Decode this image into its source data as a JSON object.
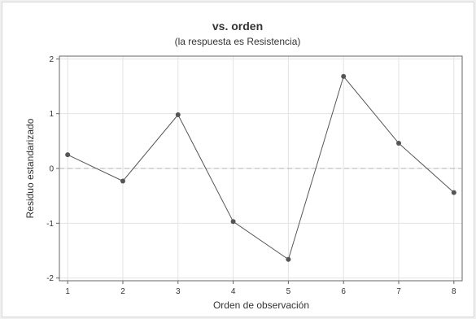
{
  "chart_data": {
    "type": "line",
    "title": "vs. orden",
    "subtitle": "(la respuesta es Resistencia)",
    "xlabel": "Orden de observación",
    "ylabel": "Residuo estandarizado",
    "x": [
      1,
      2,
      3,
      4,
      5,
      6,
      7,
      8
    ],
    "series": [
      {
        "values": [
          0.25,
          -0.23,
          0.98,
          -0.97,
          -1.66,
          1.68,
          0.46,
          -0.44
        ]
      }
    ],
    "xlim": [
      0.85,
      8.15
    ],
    "ylim": [
      -2.05,
      2.05
    ],
    "xticks": [
      1,
      2,
      3,
      4,
      5,
      6,
      7,
      8
    ],
    "yticks": [
      -2,
      -1,
      0,
      1,
      2
    ],
    "reference_line": {
      "y": 0,
      "style": "dashed"
    },
    "grid": true,
    "colors": {
      "line": "#555555",
      "marker": "#555555",
      "grid": "#e3e3e3",
      "reference": "#b0b0b0",
      "axis": "#666666"
    }
  }
}
